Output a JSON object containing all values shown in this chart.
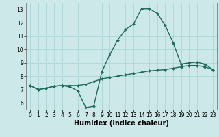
{
  "title": "",
  "xlabel": "Humidex (Indice chaleur)",
  "xlim": [
    -0.5,
    23.5
  ],
  "ylim": [
    5.5,
    13.5
  ],
  "yticks": [
    6,
    7,
    8,
    9,
    10,
    11,
    12,
    13
  ],
  "xticks": [
    0,
    1,
    2,
    3,
    4,
    5,
    6,
    7,
    8,
    9,
    10,
    11,
    12,
    13,
    14,
    15,
    16,
    17,
    18,
    19,
    20,
    21,
    22,
    23
  ],
  "line_color": "#1a6b5a",
  "background_color": "#cce8e8",
  "grid_color": "#a8d8d8",
  "line1_x": [
    0,
    1,
    2,
    3,
    4,
    5,
    6,
    7,
    8,
    9,
    10,
    11,
    12,
    13,
    14,
    15,
    16,
    17,
    18,
    19,
    20,
    21,
    22,
    23
  ],
  "line1_y": [
    7.3,
    7.0,
    7.1,
    7.25,
    7.3,
    7.2,
    6.9,
    5.65,
    5.75,
    8.3,
    9.6,
    10.7,
    11.5,
    11.9,
    13.05,
    13.05,
    12.7,
    11.8,
    10.5,
    8.9,
    9.0,
    9.05,
    8.9,
    8.5
  ],
  "line2_x": [
    0,
    1,
    2,
    3,
    4,
    5,
    6,
    7,
    8,
    9,
    10,
    11,
    12,
    13,
    14,
    15,
    16,
    17,
    18,
    19,
    20,
    21,
    22,
    23
  ],
  "line2_y": [
    7.3,
    7.0,
    7.1,
    7.25,
    7.3,
    7.3,
    7.3,
    7.4,
    7.6,
    7.8,
    7.9,
    8.0,
    8.1,
    8.2,
    8.3,
    8.4,
    8.45,
    8.5,
    8.6,
    8.7,
    8.8,
    8.8,
    8.7,
    8.5
  ],
  "marker": "D",
  "marker_size": 2.0,
  "line_width": 1.0,
  "tick_label_fontsize": 5.5,
  "xlabel_fontsize": 7.0,
  "xlabel_fontweight": "bold"
}
